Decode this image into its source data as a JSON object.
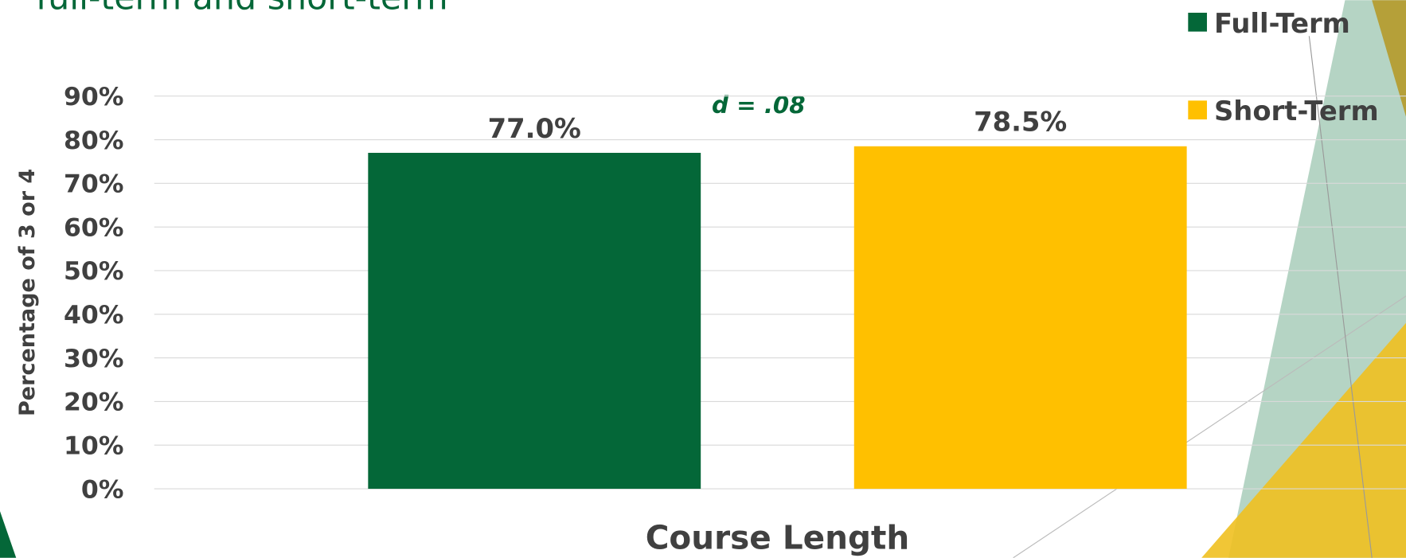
{
  "chart_data": {
    "type": "bar",
    "title": "full-term and short-term",
    "y_label": "Percentage of 3 or 4",
    "x_label": "Course Length",
    "annotation": "d = .08",
    "categories": [
      null
    ],
    "series": [
      {
        "name": "Full-Term",
        "color": "#046738",
        "values": [
          77.0
        ],
        "value_labels": [
          "77.0%"
        ]
      },
      {
        "name": "Short-Term",
        "color": "#FFC000",
        "values": [
          78.5
        ],
        "value_labels": [
          "78.5%"
        ]
      }
    ],
    "ylim": [
      0,
      90
    ],
    "yticks": [
      {
        "value": 0,
        "label": "0%"
      },
      {
        "value": 10,
        "label": "10%"
      },
      {
        "value": 20,
        "label": "20%"
      },
      {
        "value": 30,
        "label": "30%"
      },
      {
        "value": 40,
        "label": "40%"
      },
      {
        "value": 50,
        "label": "50%"
      },
      {
        "value": 60,
        "label": "60%"
      },
      {
        "value": 70,
        "label": "70%"
      },
      {
        "value": 80,
        "label": "80%"
      },
      {
        "value": 90,
        "label": "90%"
      }
    ],
    "grid": true,
    "legend": "top-right"
  }
}
